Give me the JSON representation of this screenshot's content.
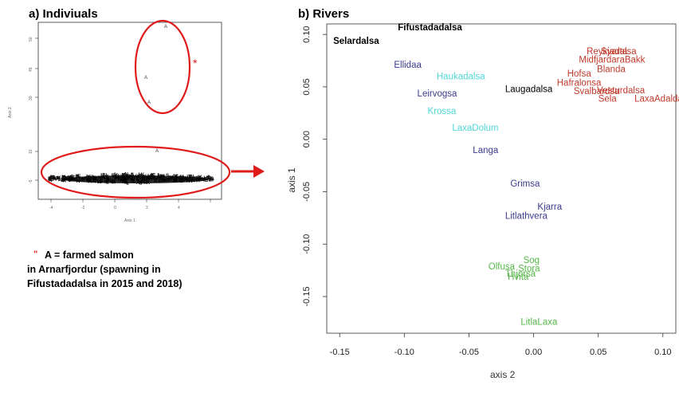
{
  "colors": {
    "ellipse": "#e01b1b",
    "black": "#000000",
    "blue": "#3b3b8f",
    "cyan": "#4fd6d6",
    "red": "#c0392b",
    "green": "#55b848"
  },
  "left_panel": {
    "title": "a) Indiviuals",
    "xlabel": "Axis 1",
    "ylabel": "Axis 2",
    "xticks": [
      "-4",
      "-2",
      "0",
      "2",
      "4"
    ],
    "yticks": [
      "-5",
      "10",
      "15",
      "20",
      "25"
    ],
    "yticks_upper": [
      "30",
      "40",
      "45",
      "50"
    ],
    "star": "*",
    "arrow_target": "b) Rivers",
    "outlier_label": "A",
    "note_mark": "\"",
    "note_lines": [
      "A = farmed salmon",
      "in Arnarfjordur (spawning in",
      "Fifustadadalsa in 2015 and 2018)"
    ]
  },
  "chart_data": {
    "type": "scatter",
    "title": "b) Rivers",
    "xlabel": "axis 2",
    "ylabel": "axis 1",
    "xlim": [
      -0.16,
      0.11
    ],
    "ylim": [
      -0.185,
      0.11
    ],
    "xticks": [
      "-0.15",
      "-0.10",
      "-0.05",
      "0.00",
      "0.05",
      "0.10"
    ],
    "xtick_values": [
      -0.15,
      -0.1,
      -0.05,
      0.0,
      0.05,
      0.1
    ],
    "yticks": [
      "0.10",
      "0.05",
      "0.00",
      "-0.05",
      "-0.10",
      "-0.15"
    ],
    "ytick_values": [
      0.1,
      0.05,
      0.0,
      -0.05,
      -0.1,
      -0.15
    ],
    "points": [
      {
        "label": "Fifustadadalsa",
        "x": -0.105,
        "y": 0.104,
        "group": "black",
        "bold": true
      },
      {
        "label": "Selardalsa",
        "x": -0.155,
        "y": 0.091,
        "group": "black",
        "bold": true
      },
      {
        "label": "Ellidaa",
        "x": -0.108,
        "y": 0.068,
        "group": "blue"
      },
      {
        "label": "Haukadalsa",
        "x": -0.075,
        "y": 0.057,
        "group": "cyan"
      },
      {
        "label": "Leirvogsa",
        "x": -0.09,
        "y": 0.041,
        "group": "blue"
      },
      {
        "label": "Laugadalsa",
        "x": -0.022,
        "y": 0.045,
        "group": "black"
      },
      {
        "label": "Krossa",
        "x": -0.082,
        "y": 0.024,
        "group": "cyan"
      },
      {
        "label": "LaxaDolum",
        "x": -0.063,
        "y": 0.008,
        "group": "cyan"
      },
      {
        "label": "Langa",
        "x": -0.047,
        "y": -0.013,
        "group": "blue"
      },
      {
        "label": "Grimsa",
        "x": -0.018,
        "y": -0.045,
        "group": "blue"
      },
      {
        "label": "Kjarra",
        "x": 0.003,
        "y": -0.067,
        "group": "blue"
      },
      {
        "label": "Litlathvera",
        "x": -0.022,
        "y": -0.076,
        "group": "blue"
      },
      {
        "label": "Reykjadalsa",
        "x": 0.041,
        "y": 0.081,
        "group": "red"
      },
      {
        "label": "Svarta",
        "x": 0.052,
        "y": 0.081,
        "group": "red"
      },
      {
        "label": "MidfjardaraBakk",
        "x": 0.035,
        "y": 0.073,
        "group": "red"
      },
      {
        "label": "Blanda",
        "x": 0.049,
        "y": 0.064,
        "group": "red"
      },
      {
        "label": "Hofsa",
        "x": 0.026,
        "y": 0.06,
        "group": "red"
      },
      {
        "label": "Hafralonsa",
        "x": 0.018,
        "y": 0.051,
        "group": "red"
      },
      {
        "label": "Svalbardsa",
        "x": 0.031,
        "y": 0.043,
        "group": "red"
      },
      {
        "label": "Vesturdalsa",
        "x": 0.049,
        "y": 0.044,
        "group": "red"
      },
      {
        "label": "Sela",
        "x": 0.05,
        "y": 0.036,
        "group": "red"
      },
      {
        "label": "LaxaAdaldal",
        "x": 0.078,
        "y": 0.036,
        "group": "red"
      },
      {
        "label": "Sog",
        "x": -0.008,
        "y": -0.118,
        "group": "green"
      },
      {
        "label": "Olfusa",
        "x": -0.035,
        "y": -0.124,
        "group": "green"
      },
      {
        "label": "Stora",
        "x": -0.012,
        "y": -0.126,
        "group": "green"
      },
      {
        "label": "Thjorsa",
        "x": -0.022,
        "y": -0.131,
        "group": "green"
      },
      {
        "label": "Hvita",
        "x": -0.02,
        "y": -0.134,
        "group": "green"
      },
      {
        "label": "LitlaLaxa",
        "x": -0.01,
        "y": -0.177,
        "group": "green"
      }
    ]
  }
}
